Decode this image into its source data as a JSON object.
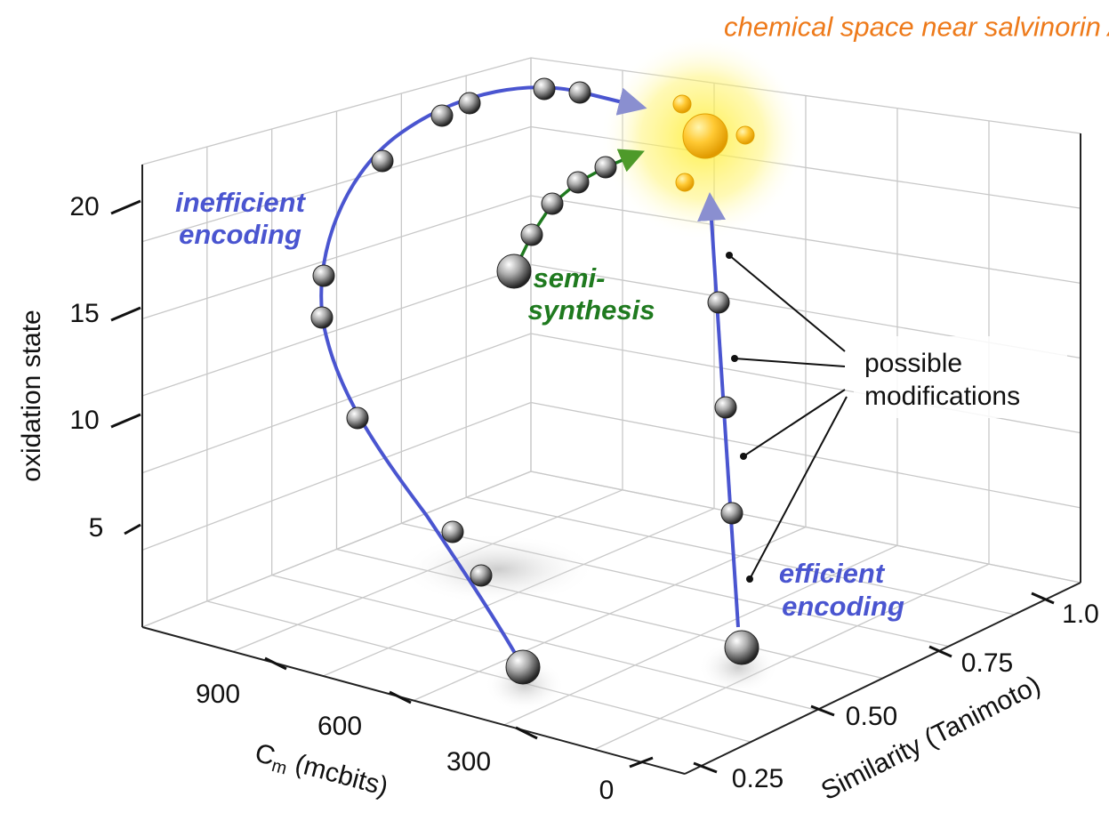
{
  "title": "chemical space near salvinorin A",
  "annotations": {
    "inefficient": [
      "inefficient",
      "encoding"
    ],
    "semi": [
      "semi-",
      "synthesis"
    ],
    "efficient": [
      "efficient",
      "encoding"
    ],
    "modifications": [
      "possible",
      "modifications"
    ]
  },
  "axes": {
    "z": {
      "title": "oxidation state",
      "ticks": [
        "20",
        "15",
        "10",
        "5"
      ]
    },
    "x": {
      "symbol": "C",
      "subscript": "m",
      "unit": " (mcbits)",
      "ticks": [
        "900",
        "600",
        "300",
        "0"
      ]
    },
    "y": {
      "title": "Similarity (Tanimoto)",
      "ticks": [
        "0.25",
        "0.50",
        "0.75",
        "1.0"
      ]
    }
  }
}
